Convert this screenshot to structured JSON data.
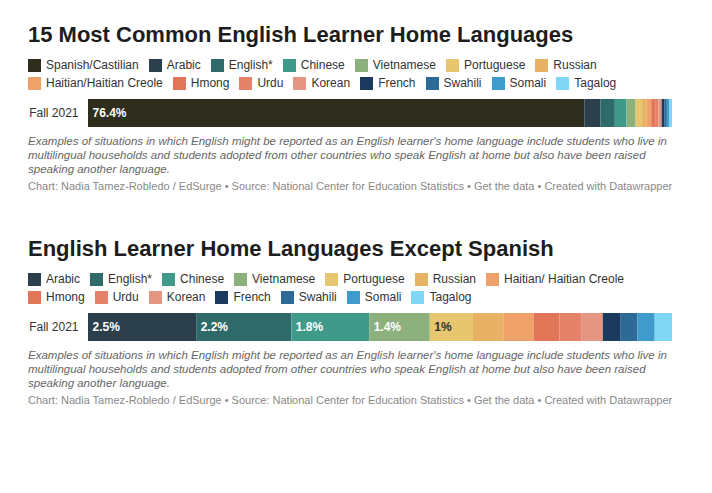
{
  "chart_data": [
    {
      "type": "bar",
      "orientation": "horizontal",
      "stacked": true,
      "data_labels": true,
      "tick_labels": "y",
      "legend": "top",
      "title": "15 Most Common English Learner Home Languages",
      "categories": [
        "Fall 2021"
      ],
      "xlim": [
        0,
        89.9
      ],
      "xticks": [],
      "series": [
        {
          "name": "Spanish/Castilian",
          "color": "#2e2d1e",
          "values": [
            76.4
          ],
          "value_labels": [
            "76.4%"
          ]
        },
        {
          "name": "Arabic",
          "color": "#2b3f4d",
          "values": [
            2.5
          ]
        },
        {
          "name": "English*",
          "color": "#2f6a6a",
          "values": [
            2.2
          ]
        },
        {
          "name": "Chinese",
          "color": "#3f9a8a",
          "values": [
            1.8
          ]
        },
        {
          "name": "Vietnamese",
          "color": "#8db17c",
          "values": [
            1.4
          ]
        },
        {
          "name": "Portuguese",
          "color": "#e6c66e",
          "values": [
            1.0
          ]
        },
        {
          "name": "Russian",
          "color": "#e8b265",
          "values": [
            0.7
          ]
        },
        {
          "name": "Haitian/Haitian Creole",
          "color": "#eea26a",
          "values": [
            0.7
          ]
        },
        {
          "name": "Hmong",
          "color": "#e07558",
          "values": [
            0.6
          ]
        },
        {
          "name": "Urdu",
          "color": "#e5826a",
          "values": [
            0.5
          ]
        },
        {
          "name": "Korean",
          "color": "#e59582",
          "values": [
            0.5
          ]
        },
        {
          "name": "French",
          "color": "#1b3a5e",
          "values": [
            0.4
          ]
        },
        {
          "name": "Swahili",
          "color": "#2d6a96",
          "values": [
            0.4
          ]
        },
        {
          "name": "Somali",
          "color": "#3f9bcb",
          "values": [
            0.4
          ]
        },
        {
          "name": "Tagalog",
          "color": "#7fd6f5",
          "values": [
            0.4
          ]
        }
      ],
      "note": "Examples of situations in which English might be reported as an English learner's home language include students who live in multilingual households and students adopted from other countries who speak English at home but also have been raised speaking another language.",
      "credit": "Chart: Nadia Tamez-Robledo / EdSurge • Source: National Center for Education Statistics • Get the data • Created with Datawrapper"
    },
    {
      "type": "bar",
      "orientation": "horizontal",
      "stacked": true,
      "data_labels": true,
      "tick_labels": "y",
      "legend": "top",
      "title": "English Learner Home Languages Except Spanish",
      "categories": [
        "Fall 2021"
      ],
      "xlim": [
        0,
        13.5
      ],
      "xticks": [],
      "series": [
        {
          "name": "Arabic",
          "color": "#2b3f4d",
          "values": [
            2.5
          ],
          "value_labels": [
            "2.5%"
          ]
        },
        {
          "name": "English*",
          "color": "#2f6a6a",
          "values": [
            2.2
          ],
          "value_labels": [
            "2.2%"
          ]
        },
        {
          "name": "Chinese",
          "color": "#3f9a8a",
          "values": [
            1.8
          ],
          "value_labels": [
            "1.8%"
          ]
        },
        {
          "name": "Vietnamese",
          "color": "#8db17c",
          "values": [
            1.4
          ],
          "value_labels": [
            "1.4%"
          ]
        },
        {
          "name": "Portuguese",
          "color": "#e6c66e",
          "values": [
            1.0
          ],
          "value_labels": [
            "1%"
          ]
        },
        {
          "name": "Russian",
          "color": "#e8b265",
          "values": [
            0.7
          ]
        },
        {
          "name": "Haitian/ Haitian Creole",
          "color": "#eea26a",
          "values": [
            0.7
          ]
        },
        {
          "name": "Hmong",
          "color": "#e07558",
          "values": [
            0.6
          ]
        },
        {
          "name": "Urdu",
          "color": "#e5826a",
          "values": [
            0.5
          ]
        },
        {
          "name": "Korean",
          "color": "#e59582",
          "values": [
            0.5
          ]
        },
        {
          "name": "French",
          "color": "#1b3a5e",
          "values": [
            0.4
          ]
        },
        {
          "name": "Swahili",
          "color": "#2d6a96",
          "values": [
            0.4
          ]
        },
        {
          "name": "Somali",
          "color": "#3f9bcb",
          "values": [
            0.4
          ]
        },
        {
          "name": "Tagalog",
          "color": "#7fd6f5",
          "values": [
            0.4
          ]
        }
      ],
      "note": "Examples of situations in which English might be reported as an English learner's home language include students who live in multilingual households and students adopted from other countries who speak English at home but also have been raised speaking another language.",
      "credit": "Chart: Nadia Tamez-Robledo / EdSurge • Source: National Center for Education Statistics • Get the data • Created with Datawrapper"
    }
  ]
}
